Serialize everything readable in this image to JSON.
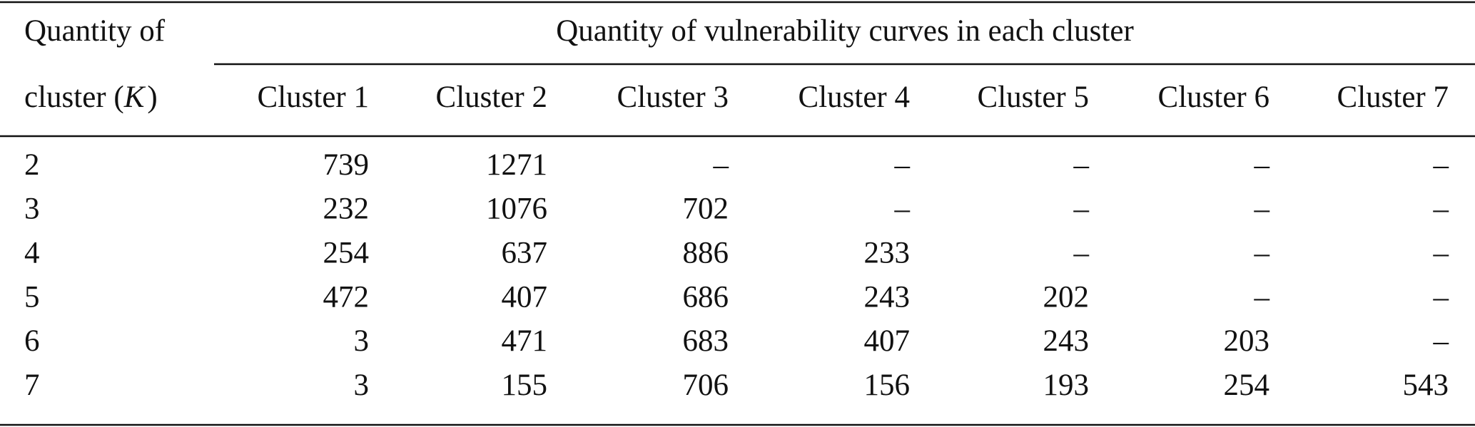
{
  "table": {
    "corner": {
      "line1": "Quantity of",
      "line2_before": "cluster (",
      "line2_symbol": "K",
      "line2_after": ")"
    },
    "group_header": "Quantity of vulnerability curves in each cluster",
    "columns": [
      "Cluster 1",
      "Cluster 2",
      "Cluster 3",
      "Cluster 4",
      "Cluster 5",
      "Cluster 6",
      "Cluster 7"
    ],
    "rows": [
      {
        "k": 2,
        "cells": [
          739,
          1271,
          "–",
          "–",
          "–",
          "–",
          "–"
        ]
      },
      {
        "k": 3,
        "cells": [
          232,
          1076,
          702,
          "–",
          "–",
          "–",
          "–"
        ]
      },
      {
        "k": 4,
        "cells": [
          254,
          637,
          886,
          233,
          "–",
          "–",
          "–"
        ]
      },
      {
        "k": 5,
        "cells": [
          472,
          407,
          686,
          243,
          202,
          "–",
          "–"
        ]
      },
      {
        "k": 6,
        "cells": [
          3,
          471,
          683,
          407,
          243,
          203,
          "–"
        ]
      },
      {
        "k": 7,
        "cells": [
          3,
          155,
          706,
          156,
          193,
          254,
          543
        ]
      }
    ]
  }
}
